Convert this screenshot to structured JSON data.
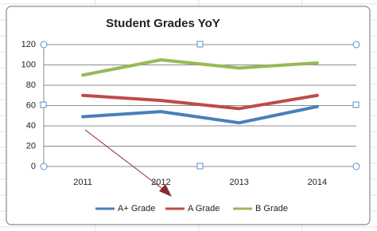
{
  "chart_data": {
    "type": "line",
    "title": "Student Grades YoY",
    "categories": [
      "2011",
      "2012",
      "2013",
      "2014"
    ],
    "series": [
      {
        "name": "A+ Grade",
        "color": "#4a7ebb",
        "values": [
          49,
          54,
          43,
          59
        ]
      },
      {
        "name": "A Grade",
        "color": "#be4b48",
        "values": [
          70,
          65,
          57,
          70
        ]
      },
      {
        "name": "B Grade",
        "color": "#98b954",
        "values": [
          90,
          105,
          97,
          102
        ]
      }
    ],
    "ylim": [
      0,
      120
    ],
    "yticks": [
      0,
      20,
      40,
      60,
      80,
      100,
      120
    ],
    "grid": true,
    "legend": "bottom"
  }
}
